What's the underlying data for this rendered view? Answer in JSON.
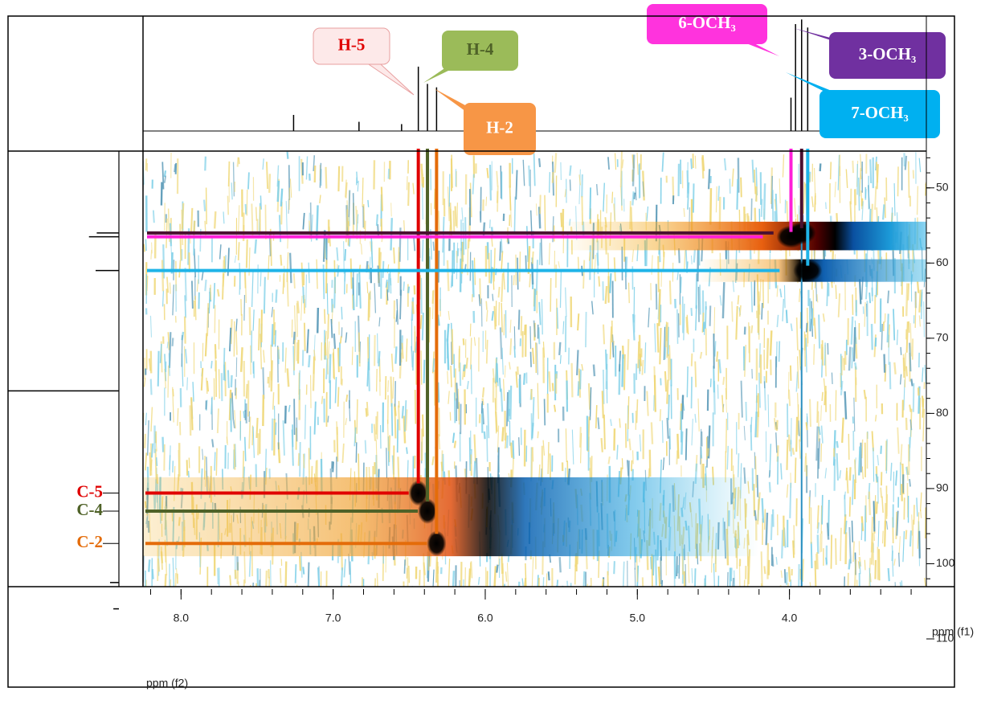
{
  "chart_data": {
    "type": "hsqc",
    "x_label": "ppm (f2)",
    "y_label": "ppm (f1)",
    "xlim": [
      8.25,
      3.1
    ],
    "ylim": [
      45,
      110
    ],
    "xticks": [
      {
        "value": 8,
        "label": "8.0"
      },
      {
        "value": 7,
        "label": "7.0"
      },
      {
        "value": 6,
        "label": "6.0"
      },
      {
        "value": 5,
        "label": "5.0"
      },
      {
        "value": 4,
        "label": "4.0"
      }
    ],
    "yticks": [
      50,
      60,
      70,
      80,
      90,
      100,
      110
    ],
    "peaks": [
      {
        "h_label": "H-5",
        "c_label": "C-5",
        "x": 6.44,
        "y": 90.6,
        "color": "#e00000",
        "box_color": "#fde9e9",
        "text_color": "#e00000"
      },
      {
        "h_label": "H-4",
        "c_label": "C-4",
        "x": 6.38,
        "y": 93.0,
        "color": "#4f6228",
        "box_color": "#9bbb59",
        "text_color": "#4f6228"
      },
      {
        "h_label": "H-2",
        "c_label": "C-2",
        "x": 6.32,
        "y": 97.3,
        "color": "#e46c0a",
        "box_color": "#f79646",
        "text_color": "#ffffff"
      },
      {
        "h_label": "6-OCH₃",
        "x": 3.99,
        "y": 56.5,
        "color": "#ff1fd8",
        "box_color": "#ff33dd",
        "text_color": "#ffffff"
      },
      {
        "h_label": "3-OCH₃",
        "x": 3.92,
        "y": 56.0,
        "color": "#4a1030",
        "box_color": "#7030a0",
        "text_color": "#ffffff"
      },
      {
        "h_label": "7-OCH₃",
        "x": 3.88,
        "y": 61.0,
        "color": "#1fb4e8",
        "box_color": "#00b0f0",
        "text_color": "#ffffff"
      }
    ],
    "proton_peaks": {
      "x": [
        7.26,
        6.83,
        6.55,
        6.44,
        6.38,
        6.32,
        3.99,
        3.96,
        3.92,
        3.88
      ],
      "intensity": [
        14,
        8,
        6,
        56,
        41,
        38,
        29,
        93,
        97,
        90
      ]
    },
    "carbon_peaks": {
      "y": [
        56.0,
        56.5,
        61.0,
        77.0,
        102.5,
        106.0
      ],
      "intensity": [
        20,
        27,
        21,
        100,
        8,
        5
      ]
    }
  }
}
